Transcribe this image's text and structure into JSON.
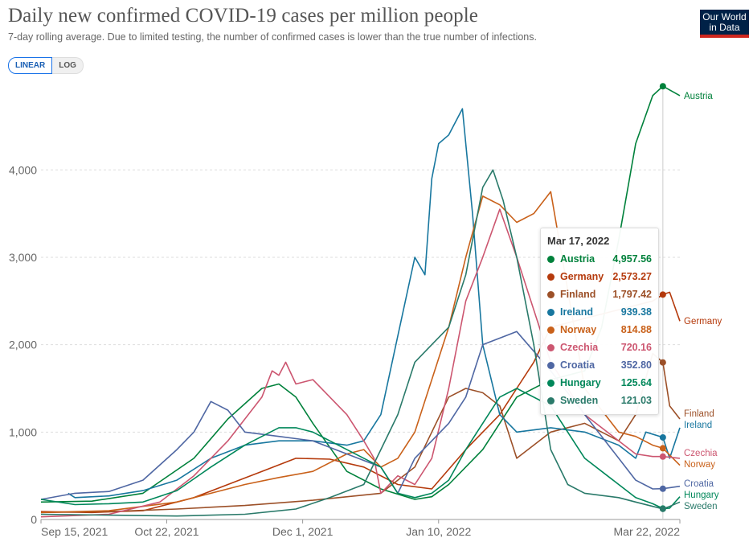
{
  "header": {
    "title": "Daily new confirmed COVID-19 cases per million people",
    "subtitle": "7-day rolling average. Due to limited testing, the number of confirmed cases is lower than the true number of infections.",
    "logo_line1": "Our World",
    "logo_line2": "in Data"
  },
  "scale_toggle": {
    "linear_label": "LINEAR",
    "log_label": "LOG",
    "selected": "LINEAR"
  },
  "tooltip": {
    "date": "Mar 17, 2022",
    "rows": [
      {
        "name": "Austria",
        "value": "4,957.56",
        "color": "#00813b"
      },
      {
        "name": "Germany",
        "value": "2,573.27",
        "color": "#b53a0c"
      },
      {
        "name": "Finland",
        "value": "1,797.42",
        "color": "#9c5028"
      },
      {
        "name": "Ireland",
        "value": "939.38",
        "color": "#18779f"
      },
      {
        "name": "Norway",
        "value": "814.88",
        "color": "#c9611a"
      },
      {
        "name": "Czechia",
        "value": "720.16",
        "color": "#cc5670"
      },
      {
        "name": "Croatia",
        "value": "352.80",
        "color": "#4f67a3"
      },
      {
        "name": "Hungary",
        "value": "125.64",
        "color": "#00875a"
      },
      {
        "name": "Sweden",
        "value": "121.03",
        "color": "#2a7a6a"
      }
    ]
  },
  "chart_data": {
    "type": "line",
    "title": "Daily new confirmed COVID-19 cases per million people",
    "subtitle": "7-day rolling average",
    "xlabel": "",
    "ylabel": "",
    "x_start": "2021-09-15",
    "x_end": "2022-03-22",
    "x_ticks": [
      "Sep 15, 2021",
      "Oct 22, 2021",
      "Dec 1, 2021",
      "Jan 10, 2022",
      "Mar 22, 2022"
    ],
    "x_tick_days": [
      0,
      37,
      77,
      117,
      188
    ],
    "y_ticks": [
      "0",
      "1,000",
      "2,000",
      "3,000",
      "4,000"
    ],
    "y_tick_values": [
      0,
      1000,
      2000,
      3000,
      4000
    ],
    "ylim": [
      0,
      4950
    ],
    "grid": "horizontal-dashed",
    "hover_day": 183,
    "series": [
      {
        "name": "Austria",
        "color": "#00813b",
        "days": [
          0,
          15,
          30,
          45,
          55,
          65,
          70,
          75,
          80,
          90,
          100,
          110,
          115,
          120,
          130,
          140,
          150,
          160,
          165,
          170,
          175,
          180,
          183,
          188
        ],
        "values": [
          200,
          210,
          300,
          700,
          1150,
          1500,
          1550,
          1400,
          1100,
          550,
          350,
          230,
          260,
          400,
          800,
          1400,
          1600,
          1700,
          2200,
          3200,
          4300,
          4850,
          4957,
          4850
        ]
      },
      {
        "name": "Germany",
        "color": "#b53a0c",
        "days": [
          0,
          15,
          30,
          45,
          55,
          65,
          75,
          85,
          95,
          105,
          115,
          125,
          135,
          140,
          145,
          150,
          160,
          170,
          175,
          180,
          183,
          185,
          188
        ],
        "values": [
          90,
          80,
          100,
          250,
          400,
          550,
          700,
          690,
          600,
          400,
          350,
          800,
          1200,
          1500,
          1800,
          2200,
          2300,
          2400,
          2450,
          2500,
          2573,
          2600,
          2270
        ]
      },
      {
        "name": "Finland",
        "color": "#9c5028",
        "days": [
          0,
          20,
          40,
          60,
          80,
          100,
          110,
          115,
          120,
          125,
          130,
          135,
          140,
          150,
          160,
          170,
          175,
          180,
          183,
          185,
          188
        ],
        "values": [
          80,
          90,
          120,
          160,
          220,
          300,
          600,
          1000,
          1400,
          1500,
          1450,
          1300,
          700,
          1000,
          1100,
          900,
          1200,
          1900,
          1797,
          1300,
          1150
        ]
      },
      {
        "name": "Ireland",
        "color": "#18779f",
        "days": [
          8,
          10,
          20,
          30,
          40,
          50,
          60,
          70,
          80,
          90,
          95,
          100,
          105,
          110,
          113,
          115,
          117,
          120,
          124,
          127,
          130,
          135,
          140,
          150,
          160,
          170,
          175,
          178,
          183,
          185,
          188
        ],
        "values": [
          300,
          250,
          270,
          330,
          450,
          700,
          850,
          900,
          900,
          850,
          900,
          1200,
          2100,
          3000,
          2800,
          3900,
          4300,
          4400,
          4700,
          3500,
          2000,
          1200,
          1000,
          1050,
          1000,
          850,
          700,
          1000,
          939,
          700,
          1050
        ]
      },
      {
        "name": "Norway",
        "color": "#c9611a",
        "days": [
          0,
          20,
          40,
          60,
          70,
          80,
          90,
          95,
          100,
          105,
          110,
          115,
          120,
          125,
          130,
          135,
          140,
          145,
          150,
          160,
          170,
          175,
          180,
          183,
          188
        ],
        "values": [
          80,
          100,
          200,
          400,
          480,
          550,
          750,
          800,
          600,
          700,
          1000,
          1600,
          2200,
          3000,
          3700,
          3600,
          3400,
          3500,
          3750,
          1500,
          1000,
          950,
          850,
          815,
          620
        ]
      },
      {
        "name": "Czechia",
        "color": "#cc5670",
        "days": [
          0,
          20,
          35,
          45,
          55,
          65,
          68,
          70,
          72,
          75,
          80,
          90,
          95,
          98,
          100,
          105,
          110,
          115,
          120,
          125,
          130,
          135,
          140,
          150,
          160,
          170,
          175,
          180,
          183,
          188
        ],
        "values": [
          30,
          60,
          200,
          500,
          900,
          1400,
          1700,
          1650,
          1800,
          1550,
          1600,
          1200,
          900,
          700,
          300,
          500,
          400,
          700,
          1500,
          2500,
          3000,
          3550,
          3000,
          1800,
          1200,
          900,
          750,
          720,
          720,
          700
        ]
      },
      {
        "name": "Croatia",
        "color": "#4f67a3",
        "days": [
          0,
          10,
          20,
          30,
          40,
          45,
          50,
          55,
          60,
          70,
          80,
          90,
          100,
          105,
          110,
          115,
          120,
          125,
          130,
          140,
          150,
          160,
          170,
          175,
          180,
          183,
          188
        ],
        "values": [
          230,
          300,
          320,
          450,
          800,
          1000,
          1350,
          1250,
          1000,
          950,
          900,
          750,
          600,
          300,
          700,
          900,
          1100,
          1400,
          2000,
          2150,
          1700,
          1200,
          700,
          450,
          350,
          352,
          380
        ]
      },
      {
        "name": "Hungary",
        "color": "#00875a",
        "days": [
          0,
          10,
          20,
          30,
          40,
          50,
          60,
          65,
          70,
          75,
          80,
          90,
          100,
          105,
          110,
          115,
          120,
          125,
          130,
          135,
          140,
          150,
          160,
          170,
          175,
          180,
          183,
          185,
          188
        ],
        "values": [
          230,
          170,
          180,
          200,
          330,
          600,
          850,
          950,
          1050,
          1050,
          1000,
          800,
          600,
          300,
          250,
          300,
          450,
          800,
          1100,
          1400,
          1500,
          1300,
          700,
          400,
          250,
          180,
          125,
          130,
          260
        ]
      },
      {
        "name": "Sweden",
        "color": "#2a7a6a",
        "days": [
          0,
          20,
          40,
          60,
          75,
          85,
          95,
          100,
          105,
          110,
          115,
          120,
          125,
          130,
          133,
          136,
          140,
          145,
          150,
          155,
          160,
          170,
          175,
          180,
          183,
          185,
          188
        ],
        "values": [
          60,
          50,
          40,
          60,
          120,
          250,
          400,
          800,
          1200,
          1800,
          2000,
          2200,
          2800,
          3800,
          4000,
          3650,
          3000,
          2000,
          800,
          400,
          300,
          250,
          200,
          150,
          121,
          150,
          200
        ]
      }
    ]
  }
}
